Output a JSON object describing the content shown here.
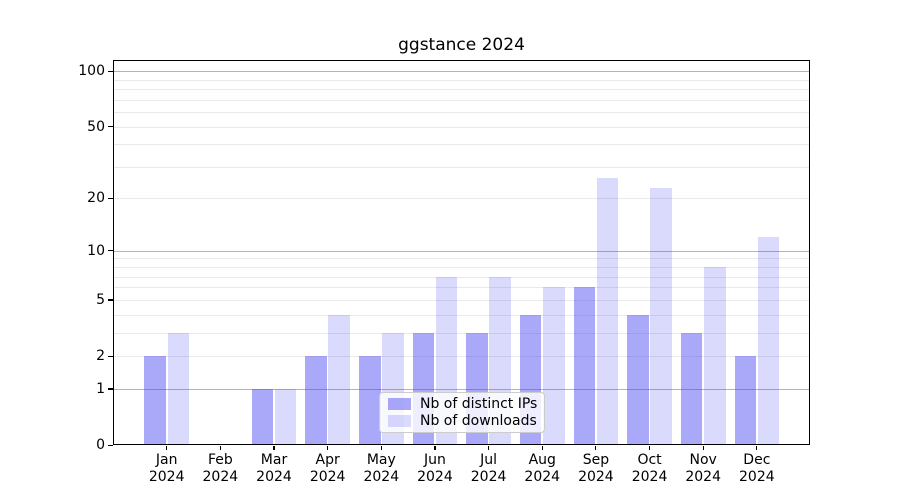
{
  "chart_data": {
    "type": "bar",
    "title": "ggstance 2024",
    "categories": [
      "Jan",
      "Feb",
      "Mar",
      "Apr",
      "May",
      "Jun",
      "Jul",
      "Aug",
      "Sep",
      "Oct",
      "Nov",
      "Dec"
    ],
    "category_year": "2024",
    "series": [
      {
        "name": "Nb of distinct IPs",
        "color": "rgba(70,68,243,0.46)",
        "values": [
          2,
          0,
          1,
          2,
          2,
          3,
          3,
          4,
          6,
          4,
          3,
          2
        ]
      },
      {
        "name": "Nb of downloads",
        "color": "rgba(70,68,243,0.20)",
        "values": [
          3,
          0,
          1,
          4,
          3,
          7,
          7,
          6,
          26,
          23,
          8,
          12
        ]
      }
    ],
    "y_scale": "log1p",
    "y_tick_labels": [
      0,
      1,
      2,
      5,
      10,
      20,
      50,
      100
    ],
    "y_major_gridlines": [
      1,
      10,
      100
    ],
    "y_minor_gridlines": [
      2,
      3,
      4,
      5,
      6,
      7,
      8,
      9,
      20,
      30,
      40,
      50,
      60,
      70,
      80,
      90
    ],
    "ylim": [
      0,
      115
    ],
    "grid": true,
    "legend_position": "lower center"
  },
  "colors": {
    "major_grid": "#b3b3b3",
    "minor_grid": "#e9e9e9",
    "axis": "#000000",
    "legend_border": "#cccccc",
    "bar_dark_hex": "#aaa9f9",
    "bar_light_hex": "#dbdaf9"
  }
}
